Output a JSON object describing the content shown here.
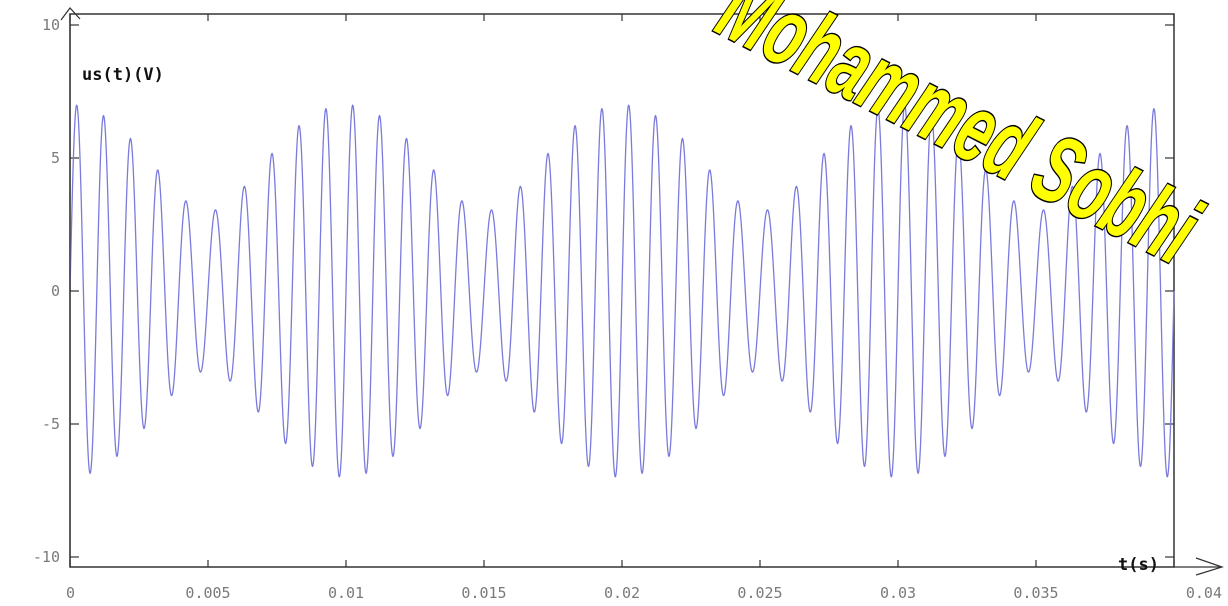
{
  "chart_data": {
    "type": "line",
    "title": "",
    "xlabel": "t(s)",
    "ylabel": "us(t)(V)",
    "xlim": [
      0,
      0.04
    ],
    "ylim": [
      -10,
      10
    ],
    "x_ticks": [
      "0",
      "0.005",
      "0.01",
      "0.015",
      "0.02",
      "0.025",
      "0.03",
      "0.035",
      "0.04"
    ],
    "y_ticks": [
      "10",
      "5",
      "0",
      "-5",
      "-10"
    ],
    "grid": false,
    "line_color": "#7b7bdd",
    "series": [
      {
        "function": "5*sin(2*pi*1000*t) + 2*sin(2*pi*1100*t)",
        "samples": 4000
      }
    ]
  },
  "watermark": {
    "text": "Mohammed Sobhi",
    "fill": "#ffff00",
    "outline": "#000000"
  }
}
